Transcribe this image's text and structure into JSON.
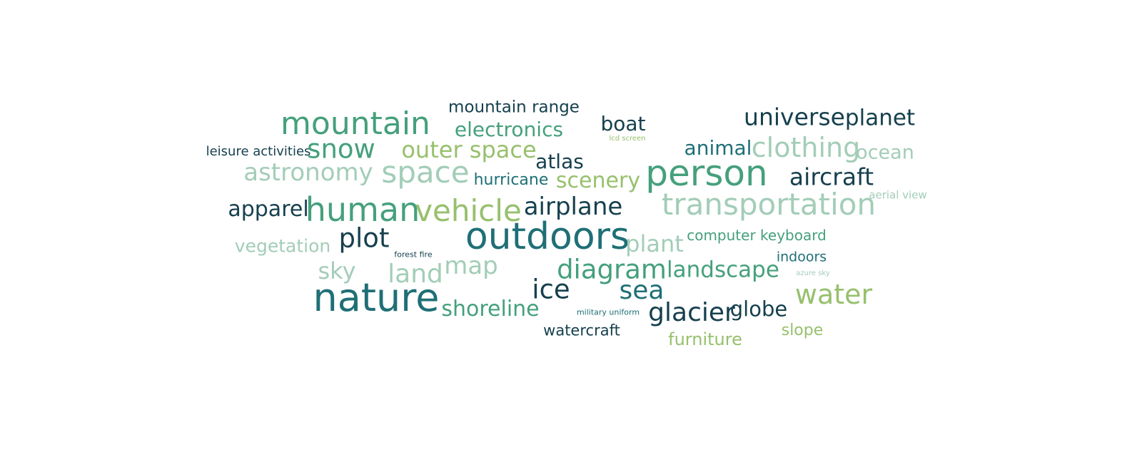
{
  "words": [
    "mountain range",
    "mountain",
    "boat",
    "universe",
    "planet",
    "electronics",
    "lcd screen",
    "leisure activities",
    "snow",
    "outer space",
    "animal",
    "clothing",
    "ocean",
    "atlas",
    "astronomy",
    "space",
    "hurricane",
    "scenery",
    "person",
    "aircraft",
    "aerial view",
    "apparel",
    "human",
    "vehicle",
    "airplane",
    "transportation",
    "vegetation",
    "plot",
    "outdoors",
    "plant",
    "computer keyboard",
    "forest fire",
    "indoors",
    "sky",
    "land",
    "map",
    "diagram",
    "landscape",
    "azure sky",
    "nature",
    "ice",
    "sea",
    "water",
    "shoreline",
    "military uniform",
    "glacier",
    "globe",
    "watercraft",
    "furniture",
    "slope"
  ]
}
